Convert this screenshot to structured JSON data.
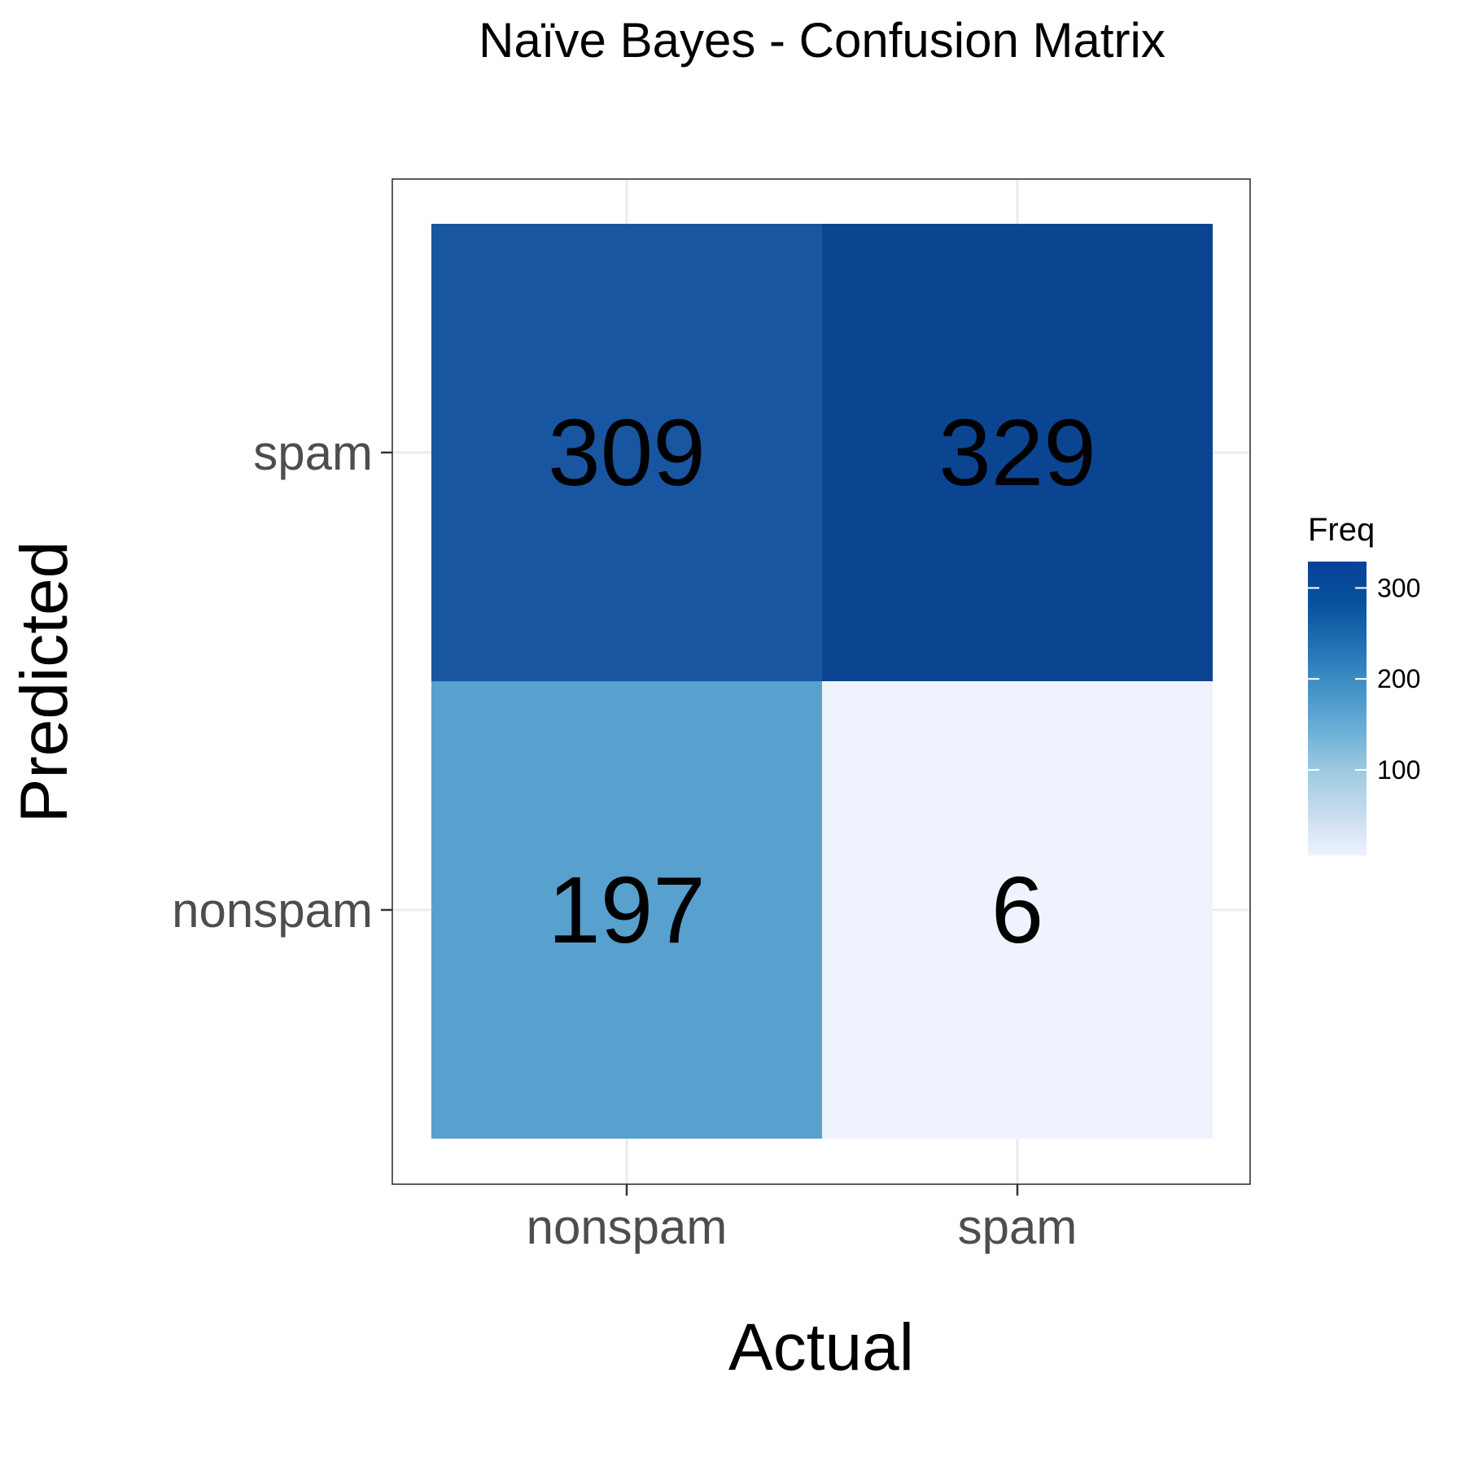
{
  "chart_data": {
    "type": "heatmap",
    "title": "Naïve Bayes - Confusion Matrix",
    "xlabel": "Actual",
    "ylabel": "Predicted",
    "x_categories": [
      "nonspam",
      "spam"
    ],
    "y_categories": [
      "nonspam",
      "spam"
    ],
    "cells": [
      {
        "actual": "nonspam",
        "predicted": "spam",
        "value": 309,
        "label": "309",
        "color": "#1856a1"
      },
      {
        "actual": "spam",
        "predicted": "spam",
        "value": 329,
        "label": "329",
        "color": "#0b4592"
      },
      {
        "actual": "nonspam",
        "predicted": "nonspam",
        "value": 197,
        "label": "197",
        "color": "#58a0cd"
      },
      {
        "actual": "spam",
        "predicted": "nonspam",
        "value": 6,
        "label": "6",
        "color": "#eef3fe"
      }
    ],
    "legend": {
      "title": "Freq",
      "position": "right",
      "range": [
        6,
        329
      ],
      "ticks": [
        {
          "value": 100,
          "label": "100"
        },
        {
          "value": 200,
          "label": "200"
        },
        {
          "value": 300,
          "label": "300"
        }
      ],
      "colors": [
        "#eef3fe",
        "#c6dbef",
        "#9ecae1",
        "#6baed6",
        "#4292c6",
        "#2171b5",
        "#08519c",
        "#08429a"
      ]
    },
    "grid": true
  }
}
